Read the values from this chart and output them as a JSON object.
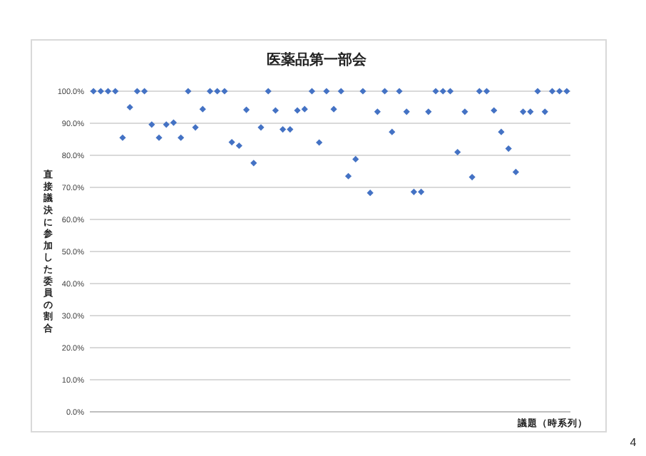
{
  "chart_data": {
    "type": "scatter",
    "title": "医薬品第一部会",
    "xlabel": "議題（時系列）",
    "ylabel": "直接議決に参加した委員の割合",
    "annotations": [
      "4"
    ],
    "categories": [
      null,
      null,
      null,
      null,
      null,
      null,
      null,
      null,
      null,
      null,
      null,
      null,
      null,
      null,
      null,
      null,
      null,
      null,
      null,
      null,
      null,
      null,
      null,
      null,
      null,
      null,
      null,
      null,
      null,
      null,
      null,
      null,
      null,
      null,
      null,
      null,
      null,
      null,
      null,
      null,
      null,
      null,
      null,
      null,
      null,
      null,
      null,
      null,
      null,
      null,
      null,
      null,
      null,
      null,
      null,
      null,
      null,
      null,
      null,
      null,
      null,
      null,
      null,
      null,
      null,
      null
    ],
    "series": [
      {
        "color": "#4472c4",
        "values": [
          100,
          100,
          100,
          100,
          85.5,
          95,
          100,
          100,
          89.6,
          85.5,
          89.6,
          90.2,
          85.5,
          100,
          88.7,
          94.4,
          100,
          100,
          100,
          84.1,
          83,
          94.2,
          77.6,
          88.7,
          100,
          94,
          88.1,
          88.1,
          94,
          94.4,
          100,
          84,
          100,
          94.4,
          100,
          73.5,
          78.8,
          100,
          68.3,
          93.6,
          100,
          87.3,
          100,
          93.6,
          68.6,
          68.6,
          93.6,
          100,
          100,
          100,
          81,
          93.6,
          73.2,
          100,
          100,
          94,
          87.3,
          82.1,
          74.8,
          93.6,
          93.6,
          100,
          93.6,
          100,
          100,
          100
        ]
      }
    ],
    "ylim": [
      0,
      100
    ],
    "yticks": [
      {
        "value": 0,
        "label": "0.0%"
      },
      {
        "value": 10,
        "label": "10.0%"
      },
      {
        "value": 20,
        "label": "20.0%"
      },
      {
        "value": 30,
        "label": "30.0%"
      },
      {
        "value": 40,
        "label": "40.0%"
      },
      {
        "value": 50,
        "label": "50.0%"
      },
      {
        "value": 60,
        "label": "60.0%"
      },
      {
        "value": 70,
        "label": "70.0%"
      },
      {
        "value": 80,
        "label": "80.0%"
      },
      {
        "value": 90,
        "label": "90.0%"
      },
      {
        "value": 100,
        "label": "100.0%"
      }
    ],
    "grid": "y",
    "marker": "diamond"
  }
}
